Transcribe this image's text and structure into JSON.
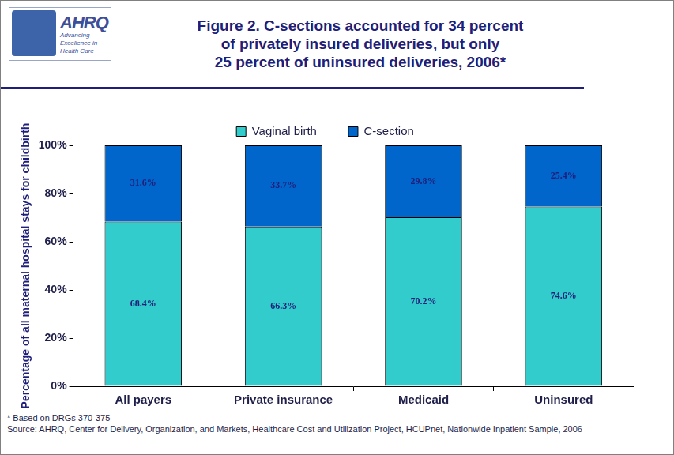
{
  "chart_data": {
    "type": "bar",
    "title": [
      "Figure 2. C-sections accounted for 34 percent",
      "of privately insured deliveries, but only",
      "25 percent of uninsured deliveries, 2006*"
    ],
    "y_label": "Percentage of all maternal hospital stays for childbirth",
    "categories": [
      "All payers",
      "Private insurance",
      "Medicaid",
      "Uninsured"
    ],
    "series": [
      {
        "name": "Vaginal birth",
        "color": "#33cccc",
        "values": [
          68.4,
          66.3,
          70.2,
          74.6
        ],
        "value_labels": [
          "68.4%",
          "66.3%",
          "70.2%",
          "74.6%"
        ]
      },
      {
        "name": "C-section",
        "color": "#0066cc",
        "values": [
          31.6,
          33.7,
          29.8,
          25.4
        ],
        "value_labels": [
          "31.6%",
          "33.7%",
          "29.8%",
          "25.4%"
        ]
      }
    ],
    "ylim": [
      0,
      100
    ],
    "yticks": [
      {
        "value": 0,
        "label": "0%"
      },
      {
        "value": 20,
        "label": "20%"
      },
      {
        "value": 40,
        "label": "40%"
      },
      {
        "value": 60,
        "label": "60%"
      },
      {
        "value": 80,
        "label": "80%"
      },
      {
        "value": 100,
        "label": "100%"
      }
    ],
    "stacked": true,
    "data_labels": true,
    "grid": false,
    "legend": "top",
    "annotations": [
      "AHRQ",
      "Advancing Excellence in Health Care",
      "* Based on DRGs 370-375",
      "Source: AHRQ, Center for Delivery, Organization, and Markets, Healthcare Cost and Utilization Project, HCUPnet, Nationwide Inpatient Sample, 2006"
    ]
  }
}
